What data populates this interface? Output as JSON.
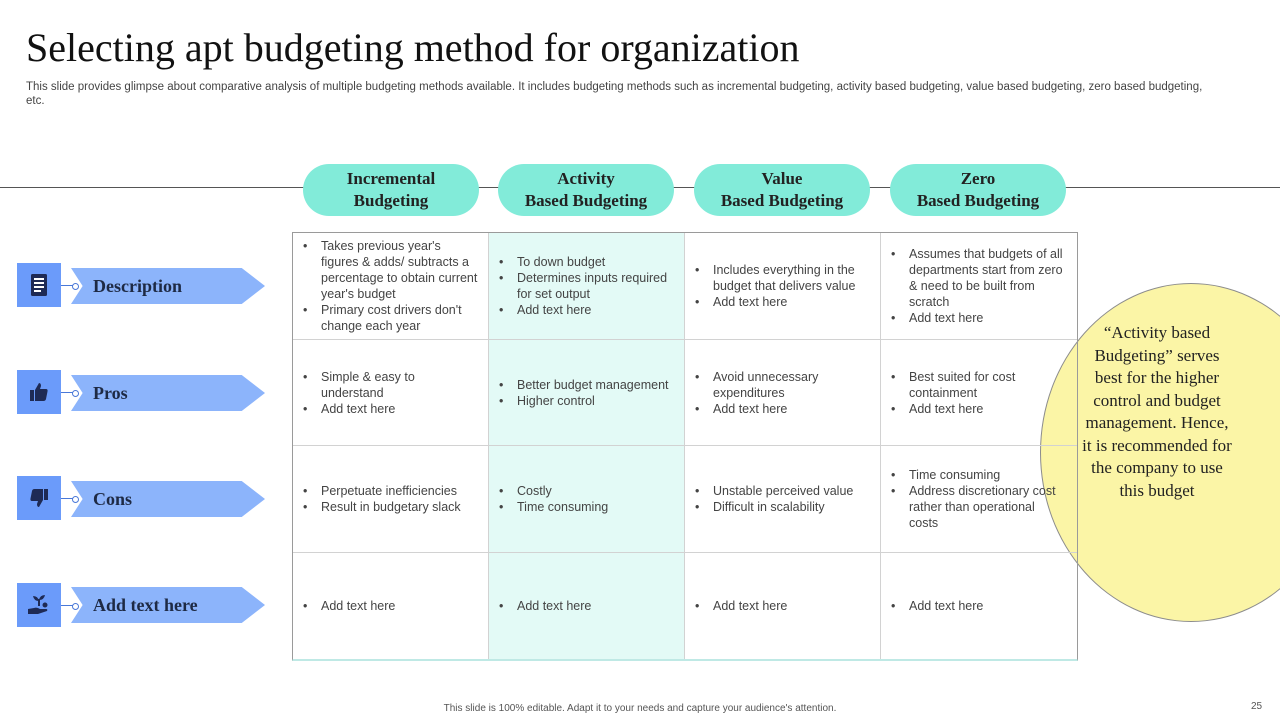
{
  "title": "Selecting apt budgeting method for organization",
  "subtitle": "This slide provides glimpse about comparative analysis of multiple budgeting methods available. It includes budgeting methods such as incremental budgeting, activity based budgeting, value based budgeting, zero based budgeting, etc.",
  "columns": [
    {
      "label": "Incremental\nBudgeting"
    },
    {
      "label": "Activity\nBased Budgeting"
    },
    {
      "label": "Value\nBased Budgeting"
    },
    {
      "label": "Zero\nBased Budgeting"
    }
  ],
  "rows": [
    {
      "label": "Description",
      "icon": "document-icon"
    },
    {
      "label": "Pros",
      "icon": "thumbs-up-icon"
    },
    {
      "label": "Cons",
      "icon": "thumbs-down-icon"
    },
    {
      "label": "Add text here",
      "icon": "hand-plant-icon"
    }
  ],
  "cells": [
    [
      [
        "Takes previous year's figures & adds/ subtracts a percentage to obtain current year's budget",
        "Primary cost drivers don't change each year"
      ],
      [
        "To down budget",
        "Determines inputs required for set output",
        "Add text here"
      ],
      [
        "Includes everything in the budget that delivers value",
        "Add text here"
      ],
      [
        "Assumes that budgets of all departments start from zero & need to be built from scratch",
        "Add text here"
      ]
    ],
    [
      [
        "Simple & easy to understand",
        "Add text here"
      ],
      [
        "Better budget management",
        "Higher control"
      ],
      [
        "Avoid unnecessary expenditures",
        "Add text here"
      ],
      [
        "Best suited for cost containment",
        "Add text here"
      ]
    ],
    [
      [
        "Perpetuate inefficiencies",
        "Result in budgetary slack"
      ],
      [
        "Costly",
        "Time consuming"
      ],
      [
        "Unstable perceived value",
        "Difficult in scalability"
      ],
      [
        "Time consuming",
        "Address discretionary cost rather than operational costs"
      ]
    ],
    [
      [
        "Add text here"
      ],
      [
        "Add text here"
      ],
      [
        "Add text here"
      ],
      [
        "Add text here"
      ]
    ]
  ],
  "callout": "“Activity based Budgeting” serves best for the higher control and budget management. Hence, it is recommended for the company to use\nthis budget",
  "footer": "This slide is 100% editable. Adapt it to your needs and capture your audience's attention.",
  "page_number": "25",
  "colors": {
    "accent_teal": "#82ebd9",
    "highlight_column": "#e3faf6",
    "row_icon_blue": "#6b9bfa",
    "row_arrow_blue": "#8cb4fb",
    "callout_yellow": "#fbf5a6"
  }
}
